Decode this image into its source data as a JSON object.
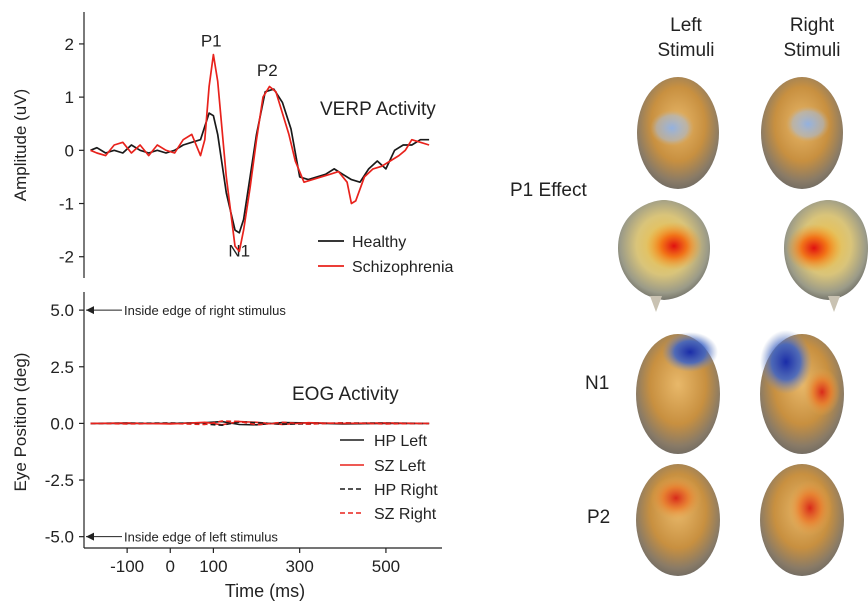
{
  "chart_data": [
    {
      "type": "line",
      "title": "VERP Activity",
      "xlabel": "",
      "ylabel": "Amplitude (uV)",
      "xlim": [
        -200,
        630
      ],
      "ylim": [
        -2.4,
        2.6
      ],
      "yticks": [
        "2",
        "1",
        "0",
        "-1",
        "-2"
      ],
      "peak_labels": [
        {
          "text": "P1",
          "x": 95,
          "y": 1.95
        },
        {
          "text": "P2",
          "x": 225,
          "y": 1.4
        },
        {
          "text": "N1",
          "x": 160,
          "y": -2.0
        }
      ],
      "series": [
        {
          "name": "Healthy",
          "color": "#1a1a1a",
          "x": [
            -185,
            -170,
            -150,
            -130,
            -110,
            -90,
            -70,
            -50,
            -30,
            -10,
            10,
            30,
            50,
            70,
            90,
            100,
            110,
            130,
            150,
            160,
            170,
            185,
            200,
            220,
            240,
            260,
            280,
            300,
            320,
            340,
            360,
            380,
            400,
            420,
            440,
            460,
            480,
            500,
            520,
            540,
            560,
            580,
            600
          ],
          "y": [
            0.0,
            0.05,
            -0.05,
            0.0,
            -0.05,
            0.1,
            0.0,
            -0.05,
            0.0,
            -0.05,
            0.0,
            0.1,
            0.15,
            0.2,
            0.7,
            0.65,
            0.3,
            -0.8,
            -1.5,
            -1.55,
            -1.3,
            -0.5,
            0.3,
            1.1,
            1.15,
            0.9,
            0.4,
            -0.5,
            -0.55,
            -0.5,
            -0.45,
            -0.35,
            -0.45,
            -0.55,
            -0.6,
            -0.35,
            -0.2,
            -0.35,
            0.0,
            0.1,
            0.1,
            0.2,
            0.2
          ]
        },
        {
          "name": "Schizophrenia",
          "color": "#e8221c",
          "x": [
            -185,
            -170,
            -150,
            -130,
            -110,
            -90,
            -70,
            -50,
            -30,
            -10,
            10,
            30,
            50,
            70,
            80,
            90,
            100,
            110,
            130,
            150,
            160,
            170,
            185,
            200,
            215,
            230,
            245,
            260,
            275,
            290,
            310,
            330,
            350,
            370,
            390,
            410,
            420,
            430,
            450,
            470,
            490,
            510,
            530,
            545,
            560,
            580,
            600
          ],
          "y": [
            0.0,
            -0.05,
            -0.1,
            0.1,
            0.15,
            -0.05,
            0.1,
            -0.1,
            0.1,
            0.0,
            -0.05,
            0.2,
            0.3,
            -0.1,
            0.2,
            1.2,
            1.8,
            1.3,
            -0.5,
            -1.8,
            -1.9,
            -1.5,
            -0.7,
            0.2,
            1.0,
            1.2,
            1.1,
            0.7,
            0.3,
            -0.2,
            -0.6,
            -0.55,
            -0.5,
            -0.45,
            -0.4,
            -0.6,
            -1.0,
            -0.95,
            -0.5,
            -0.35,
            -0.3,
            -0.2,
            -0.1,
            0.0,
            0.2,
            0.15,
            0.1
          ]
        }
      ]
    },
    {
      "type": "line",
      "title": "EOG Activity",
      "xlabel": "Time (ms)",
      "ylabel": "Eye Position (deg)",
      "xlim": [
        -200,
        630
      ],
      "ylim": [
        -5.5,
        5.8
      ],
      "yticks": [
        "5.0",
        "2.5",
        "0.0",
        "-2.5",
        "-5.0"
      ],
      "xticks": [
        "-100",
        "0",
        "100",
        "300",
        "500"
      ],
      "annotations": [
        {
          "text": "Inside edge of right stimulus",
          "y": 5.0
        },
        {
          "text": "Inside edge of left stimulus",
          "y": -5.0
        }
      ],
      "series": [
        {
          "name": "HP Left",
          "color": "#1a1a1a",
          "dash": "solid",
          "x": [
            -185,
            -100,
            0,
            80,
            120,
            160,
            200,
            260,
            320,
            400,
            500,
            600
          ],
          "y": [
            0.0,
            0.0,
            0.0,
            0.03,
            0.08,
            -0.05,
            -0.06,
            0.04,
            0.02,
            -0.02,
            0.0,
            0.0
          ]
        },
        {
          "name": "SZ Left",
          "color": "#e8221c",
          "dash": "solid",
          "x": [
            -185,
            -100,
            0,
            80,
            120,
            160,
            200,
            260,
            320,
            400,
            500,
            600
          ],
          "y": [
            0.0,
            0.02,
            -0.02,
            0.05,
            -0.06,
            0.08,
            0.05,
            -0.05,
            0.03,
            0.0,
            0.02,
            0.0
          ]
        },
        {
          "name": "HP Right",
          "color": "#1a1a1a",
          "dash": "dashed",
          "x": [
            -185,
            -100,
            0,
            80,
            120,
            160,
            200,
            260,
            320,
            400,
            500,
            600
          ],
          "y": [
            0.0,
            0.0,
            0.02,
            -0.03,
            -0.08,
            0.06,
            0.03,
            -0.03,
            -0.02,
            0.02,
            0.0,
            0.0
          ]
        },
        {
          "name": "SZ Right",
          "color": "#e8221c",
          "dash": "dashed",
          "x": [
            -185,
            -100,
            0,
            80,
            120,
            160,
            200,
            260,
            320,
            400,
            500,
            600
          ],
          "y": [
            0.0,
            -0.02,
            0.0,
            -0.05,
            0.1,
            0.09,
            -0.06,
            0.05,
            -0.03,
            0.02,
            -0.02,
            0.0
          ]
        }
      ]
    }
  ],
  "topography": {
    "column_labels": [
      [
        "Left",
        "Stimuli"
      ],
      [
        "Right",
        "Stimuli"
      ]
    ],
    "row_labels": [
      "P1 Effect",
      "N1",
      "P2"
    ]
  }
}
